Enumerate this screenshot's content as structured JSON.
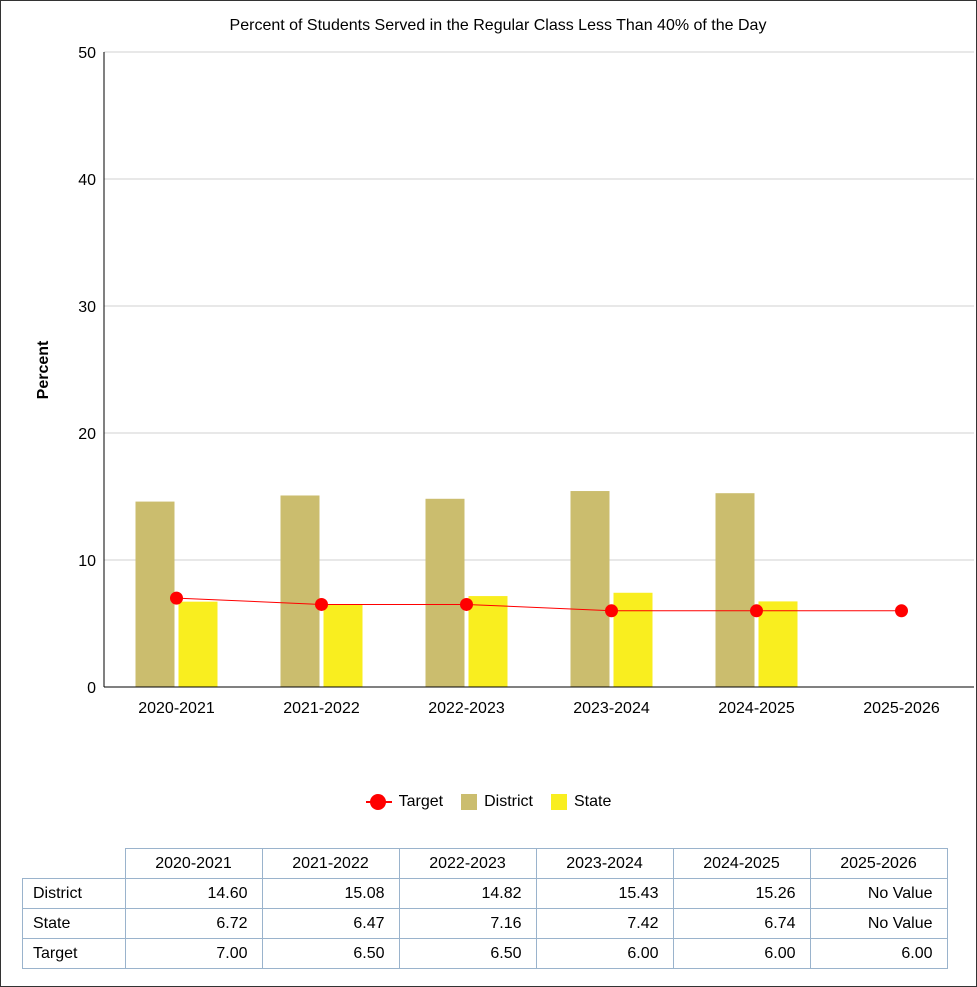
{
  "colors": {
    "district": "#cbbd6e",
    "state": "#f9ee1f",
    "target": "#ff0000",
    "grid": "#d0d0d0",
    "table_border": "#9ab3cc"
  },
  "chart_data": {
    "type": "bar",
    "title": "Percent of Students Served in the Regular Class Less Than 40% of the Day",
    "xlabel": "",
    "ylabel": "Percent",
    "ylim": [
      0,
      50
    ],
    "yticks": [
      "0",
      "10",
      "20",
      "30",
      "40",
      "50"
    ],
    "grid": true,
    "legend_position": "bottom",
    "categories": [
      "2020-2021",
      "2021-2022",
      "2022-2023",
      "2023-2024",
      "2024-2025",
      "2025-2026"
    ],
    "series": [
      {
        "name": "Target",
        "type": "line",
        "values": [
          7.0,
          6.5,
          6.5,
          6.0,
          6.0,
          6.0
        ]
      },
      {
        "name": "District",
        "type": "bar",
        "values": [
          14.6,
          15.08,
          14.82,
          15.43,
          15.26,
          null
        ]
      },
      {
        "name": "State",
        "type": "bar",
        "values": [
          6.72,
          6.47,
          7.16,
          7.42,
          6.74,
          null
        ]
      }
    ]
  },
  "legend": {
    "target_label": "Target",
    "district_label": "District",
    "state_label": "State"
  },
  "table": {
    "columns": [
      "2020-2021",
      "2021-2022",
      "2022-2023",
      "2023-2024",
      "2024-2025",
      "2025-2026"
    ],
    "rows": [
      {
        "label": "District",
        "cells": [
          "14.60",
          "15.08",
          "14.82",
          "15.43",
          "15.26",
          "No Value"
        ]
      },
      {
        "label": "State",
        "cells": [
          "6.72",
          "6.47",
          "7.16",
          "7.42",
          "6.74",
          "No Value"
        ]
      },
      {
        "label": "Target",
        "cells": [
          "7.00",
          "6.50",
          "6.50",
          "6.00",
          "6.00",
          "6.00"
        ]
      }
    ]
  }
}
